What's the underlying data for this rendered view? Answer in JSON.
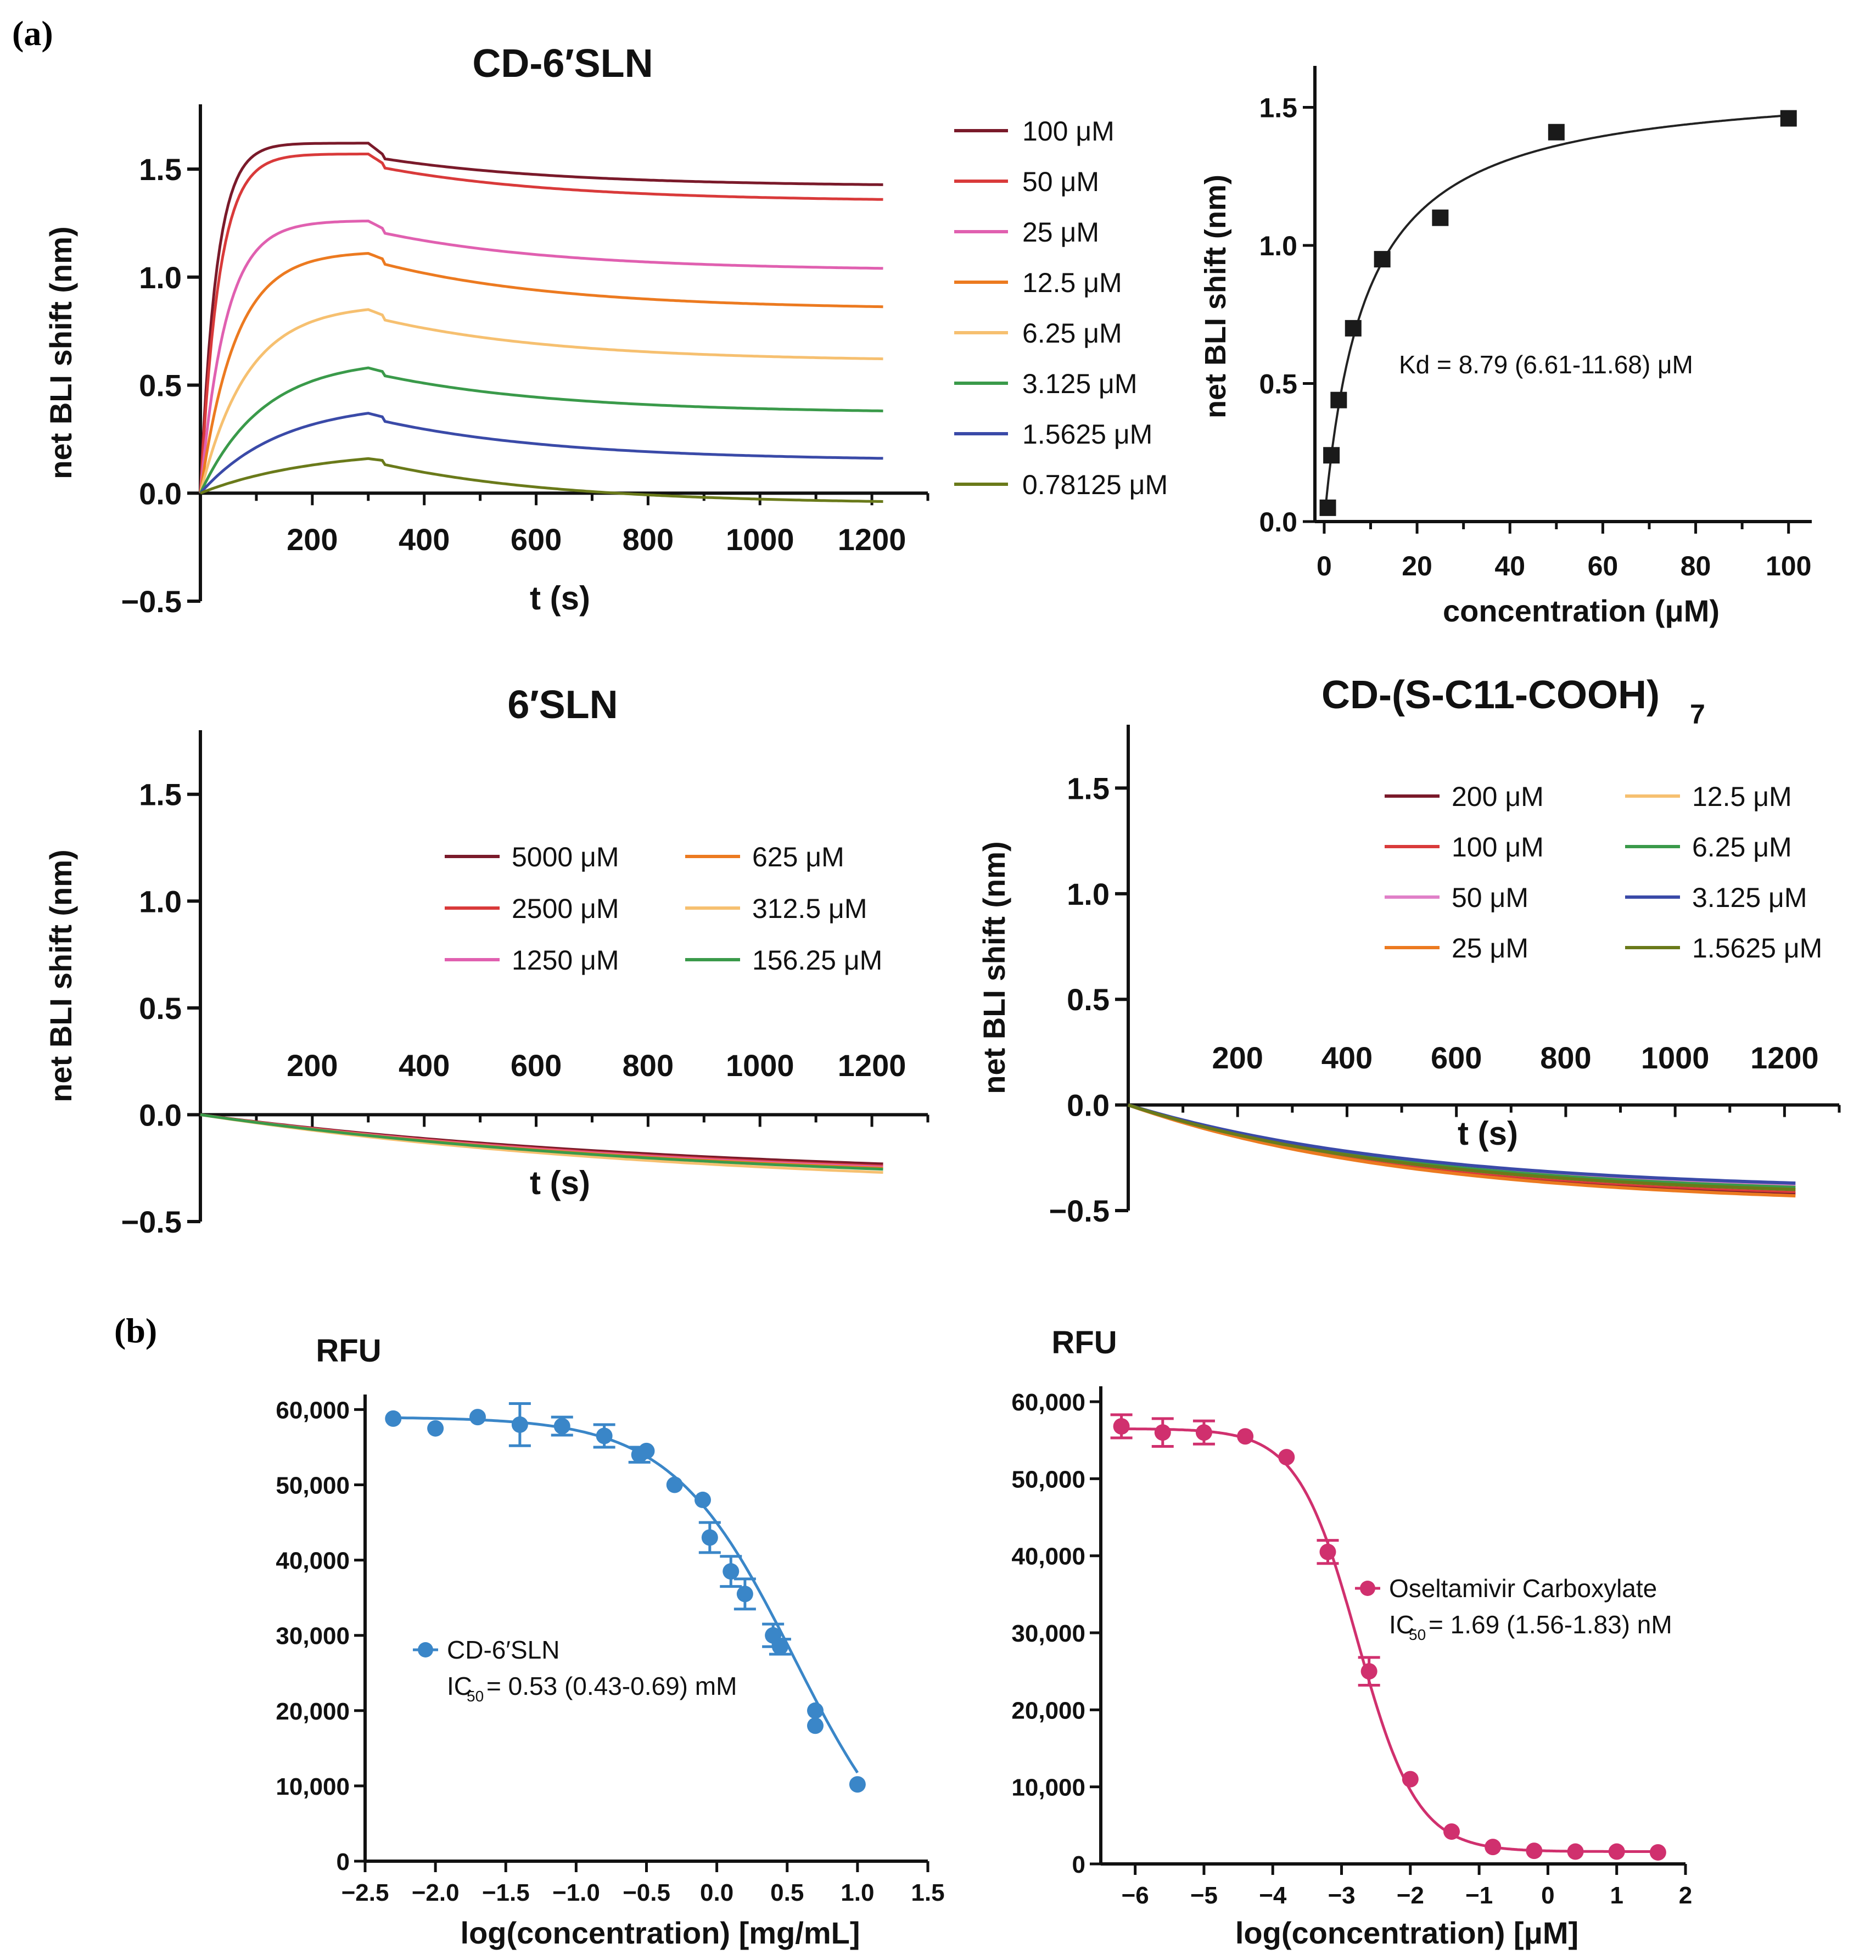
{
  "figure": {
    "panel_labels": [
      "(a)",
      "(b)"
    ]
  },
  "chart_data": [
    {
      "id": "c1",
      "type": "line",
      "title": "CD-6′SLN",
      "xlabel": "t (s)",
      "ylabel": "net BLI shift (nm)",
      "xlim": [
        0,
        1300
      ],
      "ylim": [
        -0.5,
        1.8
      ],
      "xticks": [
        200,
        400,
        600,
        800,
        1000,
        1200
      ],
      "yticks": [
        -0.5,
        0.0,
        0.5,
        1.0,
        1.5
      ],
      "ytick_labels": [
        "−0.5",
        "0.0",
        "0.5",
        "1.0",
        "1.5"
      ],
      "legend_position": "right",
      "series": [
        {
          "name": "100 μM",
          "color": "#7a1a2a",
          "peak": 1.62,
          "end": 1.42,
          "ka": 0.035,
          "drop": 0.06
        },
        {
          "name": "50 μM",
          "color": "#d93a3a",
          "peak": 1.57,
          "end": 1.35,
          "ka": 0.03,
          "drop": 0.05
        },
        {
          "name": "25 μM",
          "color": "#e060b0",
          "peak": 1.26,
          "end": 1.03,
          "ka": 0.022,
          "drop": 0.04
        },
        {
          "name": "12.5 μM",
          "color": "#ec7a20",
          "peak": 1.11,
          "end": 0.85,
          "ka": 0.016,
          "drop": 0.03
        },
        {
          "name": "6.25 μM",
          "color": "#f6c070",
          "peak": 0.85,
          "end": 0.61,
          "ka": 0.012,
          "drop": 0.03
        },
        {
          "name": "3.125 μM",
          "color": "#3a9a4a",
          "peak": 0.58,
          "end": 0.37,
          "ka": 0.009,
          "drop": 0.02
        },
        {
          "name": "1.5625 μM",
          "color": "#3a4aa8",
          "peak": 0.37,
          "end": 0.15,
          "ka": 0.007,
          "drop": 0.02
        },
        {
          "name": "0.78125 μM",
          "color": "#6a7a1a",
          "peak": 0.16,
          "end": -0.05,
          "ka": 0.005,
          "drop": 0.01
        }
      ]
    },
    {
      "id": "c2",
      "type": "scatter",
      "xlabel": "concentration (μM)",
      "ylabel": "net BLI shift (nm)",
      "xlim": [
        -2,
        105
      ],
      "ylim": [
        0.0,
        1.65
      ],
      "xticks": [
        0,
        20,
        40,
        60,
        80,
        100
      ],
      "yticks": [
        0.0,
        0.5,
        1.0,
        1.5
      ],
      "ytick_labels": [
        "0.0",
        "0.5",
        "1.0",
        "1.5"
      ],
      "annotation": "Kd = 8.79 (6.61-11.68) μM",
      "fit": {
        "model": "one-site binding",
        "Bmax": 1.6,
        "Kd": 8.79
      },
      "points": [
        {
          "x": 0.78,
          "y": 0.05
        },
        {
          "x": 1.56,
          "y": 0.24
        },
        {
          "x": 3.125,
          "y": 0.44
        },
        {
          "x": 6.25,
          "y": 0.7
        },
        {
          "x": 12.5,
          "y": 0.95
        },
        {
          "x": 25,
          "y": 1.1
        },
        {
          "x": 50,
          "y": 1.41
        },
        {
          "x": 100,
          "y": 1.46
        }
      ]
    },
    {
      "id": "c3",
      "type": "line",
      "title": "6′SLN",
      "xlabel": "t (s)",
      "ylabel": "net BLI shift (nm)",
      "xlim": [
        0,
        1300
      ],
      "ylim": [
        -0.5,
        1.8
      ],
      "xticks": [
        200,
        400,
        600,
        800,
        1000,
        1200
      ],
      "yticks": [
        -0.5,
        0.0,
        0.5,
        1.0,
        1.5
      ],
      "ytick_labels": [
        "−0.5",
        "0.0",
        "0.5",
        "1.0",
        "1.5"
      ],
      "legend_position": "upper-right",
      "series": [
        {
          "name": "5000 μM",
          "color": "#7a1a2a",
          "end": -0.23
        },
        {
          "name": "2500 μM",
          "color": "#d93a3a",
          "end": -0.24
        },
        {
          "name": "1250 μM",
          "color": "#e060b0",
          "end": -0.245
        },
        {
          "name": "625 μM",
          "color": "#ec7a20",
          "end": -0.25
        },
        {
          "name": "312.5 μM",
          "color": "#f6c070",
          "end": -0.27
        },
        {
          "name": "156.25 μM",
          "color": "#3a9a4a",
          "end": -0.255
        }
      ]
    },
    {
      "id": "c4",
      "type": "line",
      "title": "CD-(S-C11-COOH)",
      "title_sub": "7",
      "xlabel": "t (s)",
      "ylabel": "net BLI shift (nm)",
      "xlim": [
        0,
        1300
      ],
      "ylim": [
        -0.5,
        1.8
      ],
      "xticks": [
        200,
        400,
        600,
        800,
        1000,
        1200
      ],
      "yticks": [
        -0.5,
        0.0,
        0.5,
        1.0,
        1.5
      ],
      "ytick_labels": [
        "−0.5",
        "0.0",
        "0.5",
        "1.0",
        "1.5"
      ],
      "legend_position": "upper-right",
      "series": [
        {
          "name": "200 μM",
          "color": "#7a1a2a",
          "end": -0.42
        },
        {
          "name": "100 μM",
          "color": "#d93a3a",
          "end": -0.41
        },
        {
          "name": "50 μM",
          "color": "#e080c8",
          "end": -0.38
        },
        {
          "name": "25 μM",
          "color": "#ec7a20",
          "end": -0.43
        },
        {
          "name": "12.5 μM",
          "color": "#f6c070",
          "end": -0.4
        },
        {
          "name": "6.25 μM",
          "color": "#3a9a4a",
          "end": -0.39
        },
        {
          "name": "3.125 μM",
          "color": "#3a4aa8",
          "end": -0.37
        },
        {
          "name": "1.5625 μM",
          "color": "#6a7a1a",
          "end": -0.4
        }
      ]
    },
    {
      "id": "c5",
      "type": "scatter",
      "ylabel": "RFU",
      "xlabel": "log(concentration) [mg/mL]",
      "xlim": [
        -2.5,
        1.5
      ],
      "ylim": [
        0,
        62000
      ],
      "xticks": [
        -2.5,
        -2.0,
        -1.5,
        -1.0,
        -0.5,
        0.0,
        0.5,
        1.0,
        1.5
      ],
      "xtick_labels": [
        "−2.5",
        "−2.0",
        "−1.5",
        "−1.0",
        "−0.5",
        "0.0",
        "0.5",
        "1.0",
        "1.5"
      ],
      "yticks": [
        0,
        10000,
        20000,
        30000,
        40000,
        50000,
        60000
      ],
      "ytick_labels": [
        "0",
        "10,000",
        "20,000",
        "30,000",
        "40,000",
        "50,000",
        "60,000"
      ],
      "color": "#3a86c8",
      "legend": {
        "name": "CD-6′SLN",
        "ic50_label": "IC",
        "ic50_sub": "50",
        "ic50_value": " = 0.53 (0.43-0.69) mM"
      },
      "fit": {
        "top": 59000,
        "bottom": -5000,
        "logIC50": 0.55,
        "hill": 1.0,
        "x_from": -2.3,
        "x_to": 1.0
      },
      "points": [
        {
          "x": -2.3,
          "y": 58800,
          "err": 0
        },
        {
          "x": -2.0,
          "y": 57500,
          "err": 0
        },
        {
          "x": -1.7,
          "y": 59000,
          "err": 0
        },
        {
          "x": -1.4,
          "y": 58000,
          "err": 2800
        },
        {
          "x": -1.1,
          "y": 57800,
          "err": 1200
        },
        {
          "x": -0.8,
          "y": 56500,
          "err": 1500
        },
        {
          "x": -0.55,
          "y": 54000,
          "err": 1000
        },
        {
          "x": -0.5,
          "y": 54500,
          "err": 0
        },
        {
          "x": -0.3,
          "y": 50000,
          "err": 0
        },
        {
          "x": -0.1,
          "y": 48000,
          "err": 0
        },
        {
          "x": -0.05,
          "y": 43000,
          "err": 2000
        },
        {
          "x": 0.1,
          "y": 38500,
          "err": 2000
        },
        {
          "x": 0.2,
          "y": 35500,
          "err": 2000
        },
        {
          "x": 0.4,
          "y": 30000,
          "err": 1500
        },
        {
          "x": 0.45,
          "y": 28500,
          "err": 1000
        },
        {
          "x": 0.7,
          "y": 20000,
          "err": 0
        },
        {
          "x": 0.7,
          "y": 18000,
          "err": 0
        },
        {
          "x": 1.0,
          "y": 10200,
          "err": 0
        }
      ]
    },
    {
      "id": "c6",
      "type": "scatter",
      "ylabel": "RFU",
      "xlabel": "log(concentration) [μM]",
      "xlim": [
        -6.5,
        2
      ],
      "ylim": [
        0,
        62000
      ],
      "xticks": [
        -6,
        -5,
        -4,
        -3,
        -2,
        -1,
        0,
        1,
        2
      ],
      "xtick_labels": [
        "−6",
        "−5",
        "−4",
        "−3",
        "−2",
        "−1",
        "0",
        "1",
        "2"
      ],
      "yticks": [
        0,
        10000,
        20000,
        30000,
        40000,
        50000,
        60000
      ],
      "ytick_labels": [
        "0",
        "10,000",
        "20,000",
        "30,000",
        "40,000",
        "50,000",
        "60,000"
      ],
      "color": "#d0306e",
      "legend": {
        "name": "Oseltamivir Carboxylate",
        "ic50_label": "IC",
        "ic50_sub": "50",
        "ic50_value": "= 1.69 (1.56-1.83) nM"
      },
      "fit": {
        "top": 56500,
        "bottom": 1600,
        "logIC50": -2.77,
        "hill": 1.0,
        "x_from": -6.2,
        "x_to": 1.6
      },
      "points": [
        {
          "x": -6.2,
          "y": 56800,
          "err": 1500
        },
        {
          "x": -5.6,
          "y": 56000,
          "err": 1800
        },
        {
          "x": -5.0,
          "y": 56000,
          "err": 1500
        },
        {
          "x": -4.4,
          "y": 55500,
          "err": 0
        },
        {
          "x": -3.8,
          "y": 52800,
          "err": 0
        },
        {
          "x": -3.2,
          "y": 40500,
          "err": 1500
        },
        {
          "x": -2.6,
          "y": 25000,
          "err": 1800
        },
        {
          "x": -2.0,
          "y": 11000,
          "err": 0
        },
        {
          "x": -1.4,
          "y": 4200,
          "err": 0
        },
        {
          "x": -0.8,
          "y": 2200,
          "err": 0
        },
        {
          "x": -0.2,
          "y": 1700,
          "err": 0
        },
        {
          "x": 0.4,
          "y": 1600,
          "err": 0
        },
        {
          "x": 1.0,
          "y": 1600,
          "err": 0
        },
        {
          "x": 1.6,
          "y": 1500,
          "err": 0
        }
      ]
    }
  ]
}
